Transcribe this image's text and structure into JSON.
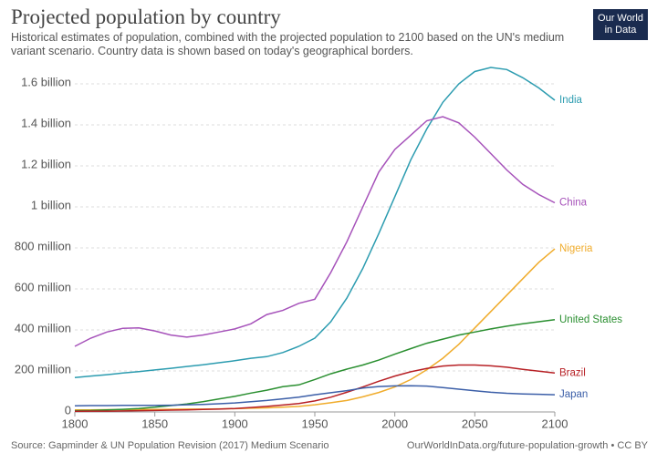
{
  "chart_data": {
    "type": "line",
    "title": "Projected population by country",
    "subtitle": "Historical estimates of population, combined with the projected population to 2100 based on the UN's medium variant scenario. Country data is shown based on today's geographical borders.",
    "logo": [
      "Our World",
      "in Data"
    ],
    "source": "Source: Gapminder & UN Population Revision (2017) Medium Scenario",
    "footer_right": "OurWorldInData.org/future-population-growth • CC BY",
    "x": [
      1800,
      1810,
      1820,
      1830,
      1840,
      1850,
      1860,
      1870,
      1880,
      1890,
      1900,
      1910,
      1920,
      1930,
      1940,
      1950,
      1960,
      1970,
      1980,
      1990,
      2000,
      2010,
      2020,
      2030,
      2040,
      2050,
      2060,
      2070,
      2080,
      2090,
      2100
    ],
    "xlim": [
      1800,
      2100
    ],
    "xticks": [
      1800,
      1850,
      1900,
      1950,
      2000,
      2050,
      2100
    ],
    "ylim": [
      0,
      1600
    ],
    "yticks": [
      0,
      {
        "value": 200,
        "label": "200 million"
      },
      {
        "value": 400,
        "label": "400 million"
      },
      {
        "value": 600,
        "label": "600 million"
      },
      {
        "value": 800,
        "label": "800 million"
      },
      {
        "value": 1000,
        "label": "1 billion"
      },
      {
        "value": 1200,
        "label": "1.2 billion"
      },
      {
        "value": 1400,
        "label": "1.4 billion"
      },
      {
        "value": 1600,
        "label": "1.6 billion"
      }
    ],
    "grid": true,
    "series": [
      {
        "name": "India",
        "color": "#2c9cb0",
        "values": [
          168,
          175,
          182,
          190,
          197,
          205,
          213,
          222,
          230,
          240,
          250,
          262,
          270,
          290,
          320,
          360,
          440,
          555,
          700,
          870,
          1050,
          1230,
          1380,
          1510,
          1600,
          1660,
          1680,
          1670,
          1630,
          1580,
          1520
        ]
      },
      {
        "name": "China",
        "color": "#a652ba",
        "values": [
          320,
          360,
          390,
          408,
          410,
          395,
          375,
          365,
          375,
          390,
          405,
          430,
          475,
          495,
          530,
          550,
          680,
          830,
          1000,
          1170,
          1280,
          1350,
          1420,
          1440,
          1410,
          1340,
          1260,
          1180,
          1110,
          1060,
          1020
        ]
      },
      {
        "name": "Nigeria",
        "color": "#f0ac2c",
        "values": [
          10,
          10,
          11,
          11,
          12,
          12,
          13,
          14,
          14,
          15,
          16,
          18,
          20,
          23,
          27,
          35,
          45,
          56,
          74,
          95,
          122,
          158,
          206,
          262,
          330,
          410,
          490,
          570,
          650,
          730,
          795
        ]
      },
      {
        "name": "United States",
        "color": "#2a8f30",
        "values": [
          6,
          7,
          10,
          13,
          17,
          23,
          31,
          39,
          50,
          63,
          76,
          92,
          106,
          123,
          132,
          158,
          186,
          209,
          229,
          253,
          282,
          309,
          335,
          355,
          375,
          390,
          405,
          418,
          430,
          440,
          450
        ]
      },
      {
        "name": "Brazil",
        "color": "#b72025",
        "values": [
          3,
          4,
          4,
          5,
          6,
          7,
          9,
          10,
          12,
          14,
          17,
          22,
          27,
          34,
          41,
          54,
          72,
          96,
          122,
          150,
          175,
          196,
          212,
          224,
          229,
          229,
          225,
          218,
          208,
          199,
          190
        ]
      },
      {
        "name": "Japan",
        "color": "#3c5fa8",
        "values": [
          30,
          31,
          31,
          32,
          32,
          32,
          33,
          35,
          37,
          40,
          44,
          50,
          56,
          64,
          72,
          84,
          94,
          104,
          117,
          124,
          127,
          128,
          126,
          119,
          111,
          103,
          96,
          91,
          88,
          86,
          84
        ]
      }
    ]
  }
}
